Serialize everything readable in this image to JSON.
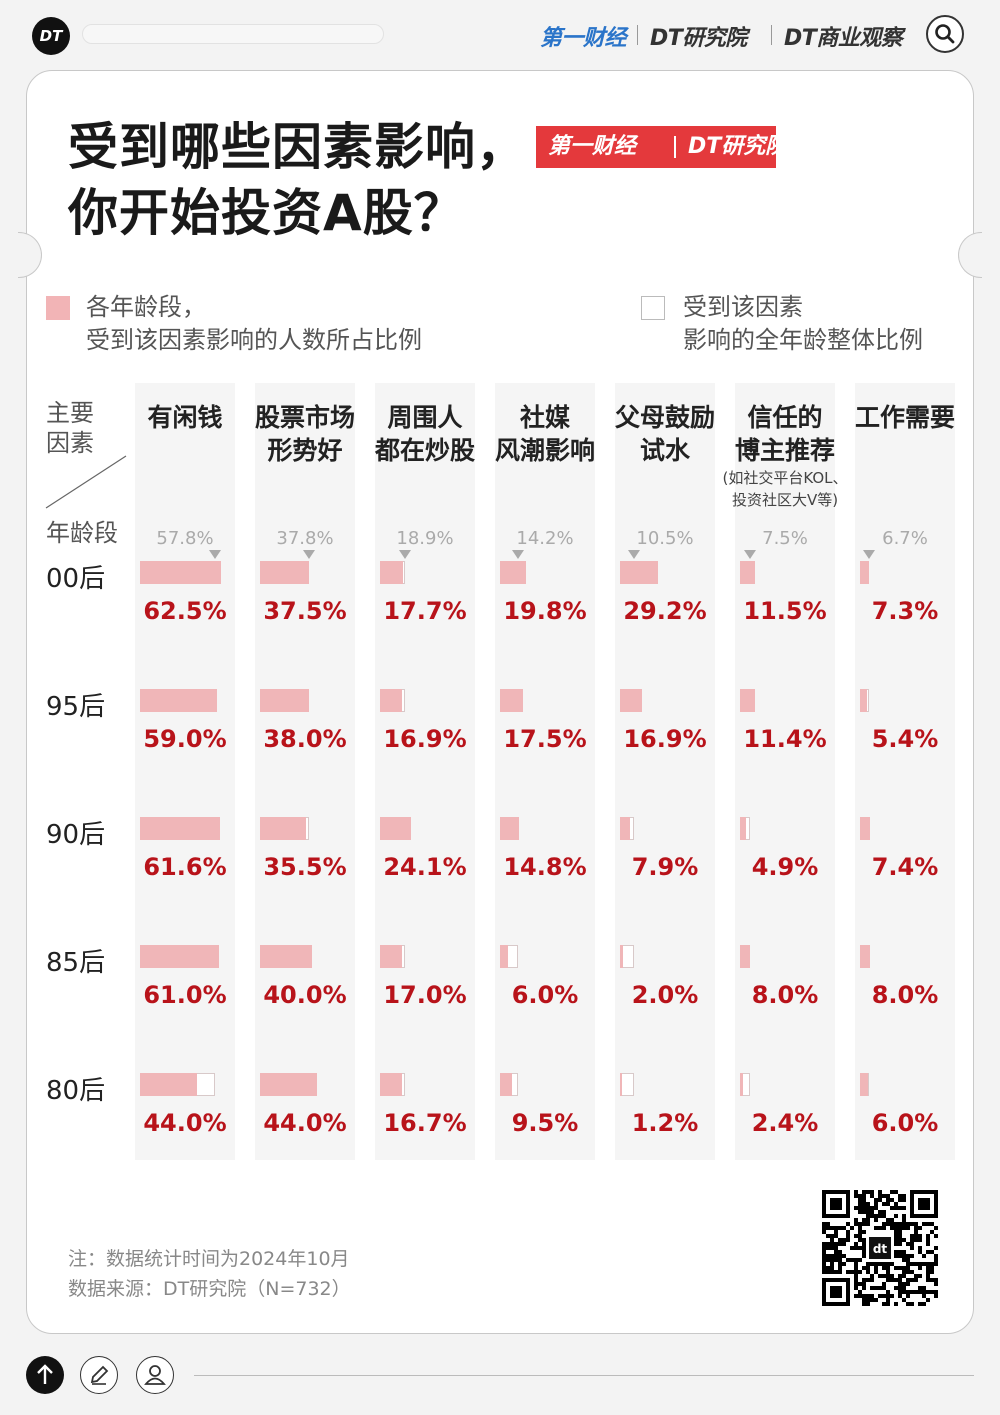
{
  "header": {
    "logo_text": "DT",
    "brand_yicai": "第一财经",
    "brand_dt_research": "DT研究院",
    "brand_dt_business": "DT商业观察",
    "search_icon": "search-icon"
  },
  "title": {
    "line1": "受到哪些因素影响，",
    "line2": "你开始投资A股？",
    "badge_yicai": "第一财经",
    "badge_dt": "DT研究院"
  },
  "legend": {
    "filled_line1": "各年龄段，",
    "filled_line2": "受到该因素影响的人数所占比例",
    "empty_line1": "受到该因素",
    "empty_line2": "影响的全年龄整体比例"
  },
  "corner": {
    "top": [
      "主要",
      "因素"
    ],
    "bottom": "年龄段"
  },
  "chart_data": {
    "type": "bar",
    "categories": [
      "有闲钱",
      "股票市场形势好",
      "周围人都在炒股",
      "社媒风潮影响",
      "父母鼓励试水",
      "信任的博主推荐",
      "工作需要"
    ],
    "category_header_lines": [
      [
        "有闲钱"
      ],
      [
        "股票市场",
        "形势好"
      ],
      [
        "周围人",
        "都在炒股"
      ],
      [
        "社媒",
        "风潮影响"
      ],
      [
        "父母鼓励",
        "试水"
      ],
      [
        "信任的",
        "博主推荐"
      ],
      [
        "工作需要"
      ]
    ],
    "category_sublabel": [
      "",
      "",
      "",
      "",
      "",
      "(如社交平台KOL、投资社区大V等)",
      ""
    ],
    "overall": [
      57.8,
      37.8,
      18.9,
      14.2,
      10.5,
      7.5,
      6.7
    ],
    "overall_labels": [
      "57.8%",
      "37.8%",
      "18.9%",
      "14.2%",
      "10.5%",
      "7.5%",
      "6.7%"
    ],
    "series": [
      {
        "name": "00后",
        "values": [
          62.5,
          37.5,
          17.7,
          19.8,
          29.2,
          11.5,
          7.3
        ],
        "labels": [
          "62.5%",
          "37.5%",
          "17.7%",
          "19.8%",
          "29.2%",
          "11.5%",
          "7.3%"
        ]
      },
      {
        "name": "95后",
        "values": [
          59.0,
          38.0,
          16.9,
          17.5,
          16.9,
          11.4,
          5.4
        ],
        "labels": [
          "59.0%",
          "38.0%",
          "16.9%",
          "17.5%",
          "16.9%",
          "11.4%",
          "5.4%"
        ]
      },
      {
        "name": "90后",
        "values": [
          61.6,
          35.5,
          24.1,
          14.8,
          7.9,
          4.9,
          7.4
        ],
        "labels": [
          "61.6%",
          "35.5%",
          "24.1%",
          "14.8%",
          "7.9%",
          "4.9%",
          "7.4%"
        ]
      },
      {
        "name": "85后",
        "values": [
          61.0,
          40.0,
          17.0,
          6.0,
          2.0,
          8.0,
          8.0
        ],
        "labels": [
          "61.0%",
          "40.0%",
          "17.0%",
          "6.0%",
          "2.0%",
          "8.0%",
          "8.0%"
        ]
      },
      {
        "name": "80后",
        "values": [
          44.0,
          44.0,
          16.7,
          9.5,
          1.2,
          2.4,
          6.0
        ],
        "labels": [
          "44.0%",
          "44.0%",
          "16.7%",
          "9.5%",
          "1.2%",
          "2.4%",
          "6.0%"
        ]
      }
    ],
    "colors": {
      "fill": "#f0b6b8",
      "value_text": "#b8131a",
      "overall_text": "#aaaaaa"
    }
  },
  "notes": {
    "line1": "注：数据统计时间为2024年10月",
    "line2": "数据来源：DT研究院（N=732）"
  },
  "qr_label": "dt",
  "toolbar": {
    "up_icon": "arrow-up-icon",
    "edit_icon": "pencil-icon",
    "user_icon": "user-icon"
  }
}
